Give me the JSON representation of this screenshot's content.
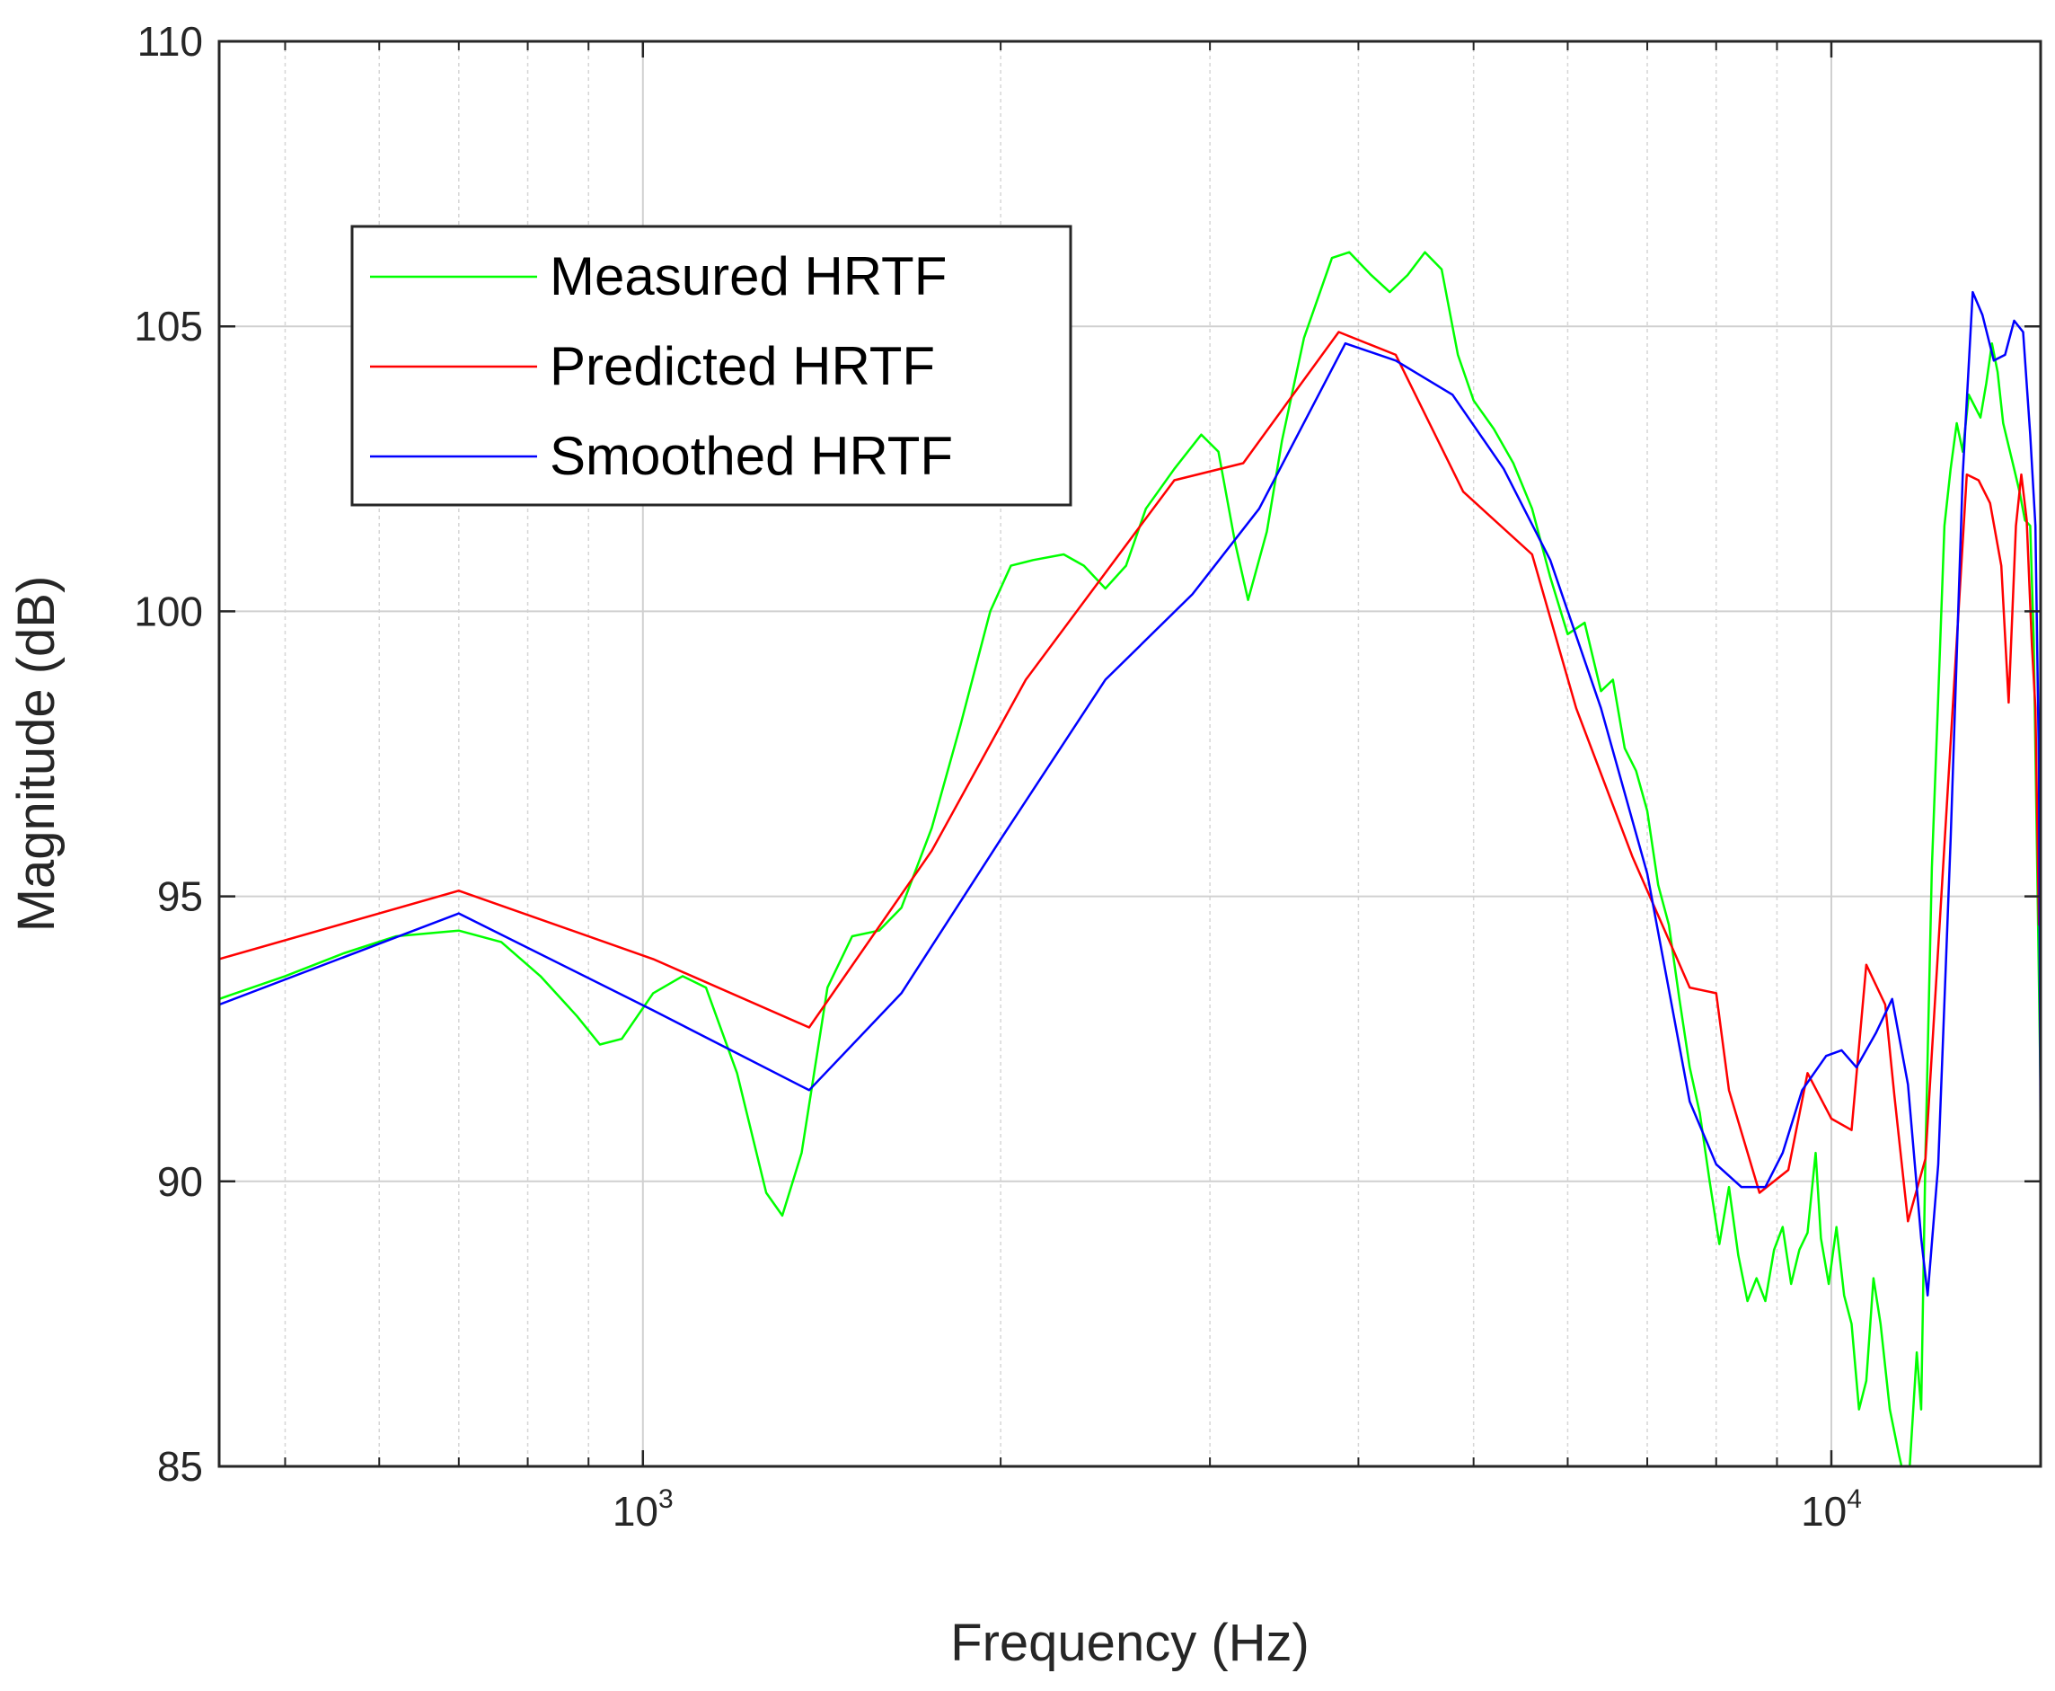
{
  "chart_data": {
    "type": "line",
    "xlabel": "Frequency (Hz)",
    "ylabel": "Magnitude (dB)",
    "x_scale": "log",
    "xlim": [
      440,
      15000
    ],
    "ylim": [
      85,
      110
    ],
    "y_ticks": [
      85,
      90,
      95,
      100,
      105,
      110
    ],
    "y_tick_labels": [
      "85",
      "90",
      "95",
      "100",
      "105",
      "110"
    ],
    "x_ticks": [
      1000,
      10000
    ],
    "x_tick_labels": [
      {
        "base": "10",
        "exp": "3"
      },
      {
        "base": "10",
        "exp": "4"
      }
    ],
    "grid": true,
    "legend_position": "upper-left",
    "series": [
      {
        "name": "Measured HRTF",
        "color": "#00ff00",
        "points": [
          [
            440,
            93.2
          ],
          [
            500,
            93.6
          ],
          [
            560,
            94.0
          ],
          [
            620,
            94.3
          ],
          [
            700,
            94.4
          ],
          [
            760,
            94.2
          ],
          [
            820,
            93.6
          ],
          [
            880,
            92.9
          ],
          [
            920,
            92.4
          ],
          [
            960,
            92.5
          ],
          [
            1020,
            93.3
          ],
          [
            1080,
            93.6
          ],
          [
            1130,
            93.4
          ],
          [
            1200,
            91.9
          ],
          [
            1270,
            89.8
          ],
          [
            1310,
            89.4
          ],
          [
            1360,
            90.5
          ],
          [
            1430,
            93.4
          ],
          [
            1500,
            94.3
          ],
          [
            1580,
            94.4
          ],
          [
            1650,
            94.8
          ],
          [
            1750,
            96.2
          ],
          [
            1850,
            98.0
          ],
          [
            1960,
            100.0
          ],
          [
            2040,
            100.8
          ],
          [
            2130,
            100.9
          ],
          [
            2260,
            101.0
          ],
          [
            2350,
            100.8
          ],
          [
            2450,
            100.4
          ],
          [
            2550,
            100.8
          ],
          [
            2650,
            101.8
          ],
          [
            2800,
            102.5
          ],
          [
            2950,
            103.1
          ],
          [
            3050,
            102.8
          ],
          [
            3150,
            101.2
          ],
          [
            3230,
            100.2
          ],
          [
            3350,
            101.4
          ],
          [
            3450,
            103.0
          ],
          [
            3600,
            104.8
          ],
          [
            3800,
            106.2
          ],
          [
            3930,
            106.3
          ],
          [
            4100,
            105.9
          ],
          [
            4250,
            105.6
          ],
          [
            4400,
            105.9
          ],
          [
            4550,
            106.3
          ],
          [
            4700,
            106.0
          ],
          [
            4850,
            104.5
          ],
          [
            5000,
            103.7
          ],
          [
            5200,
            103.2
          ],
          [
            5400,
            102.6
          ],
          [
            5600,
            101.8
          ],
          [
            5800,
            100.6
          ],
          [
            6000,
            99.6
          ],
          [
            6200,
            99.8
          ],
          [
            6400,
            98.6
          ],
          [
            6550,
            98.8
          ],
          [
            6700,
            97.6
          ],
          [
            6850,
            97.2
          ],
          [
            7000,
            96.5
          ],
          [
            7150,
            95.2
          ],
          [
            7300,
            94.5
          ],
          [
            7450,
            93.2
          ],
          [
            7600,
            92.0
          ],
          [
            7750,
            91.2
          ],
          [
            7900,
            90.0
          ],
          [
            8050,
            88.9
          ],
          [
            8200,
            89.9
          ],
          [
            8350,
            88.7
          ],
          [
            8500,
            87.9
          ],
          [
            8650,
            88.3
          ],
          [
            8800,
            87.9
          ],
          [
            8950,
            88.8
          ],
          [
            9100,
            89.2
          ],
          [
            9250,
            88.2
          ],
          [
            9400,
            88.8
          ],
          [
            9550,
            89.1
          ],
          [
            9700,
            90.5
          ],
          [
            9800,
            89.0
          ],
          [
            9950,
            88.2
          ],
          [
            10100,
            89.2
          ],
          [
            10250,
            88.0
          ],
          [
            10400,
            87.5
          ],
          [
            10550,
            86.0
          ],
          [
            10700,
            86.5
          ],
          [
            10850,
            88.3
          ],
          [
            11000,
            87.5
          ],
          [
            11200,
            86.0
          ],
          [
            11400,
            85.2
          ],
          [
            11600,
            84.5
          ],
          [
            11800,
            87.0
          ],
          [
            11900,
            86.0
          ],
          [
            12000,
            90.5
          ],
          [
            12150,
            95.5
          ],
          [
            12300,
            98.5
          ],
          [
            12450,
            101.5
          ],
          [
            12600,
            102.5
          ],
          [
            12750,
            103.3
          ],
          [
            12900,
            102.8
          ],
          [
            13050,
            103.8
          ],
          [
            13200,
            103.6
          ],
          [
            13350,
            103.4
          ],
          [
            13500,
            104.0
          ],
          [
            13650,
            104.7
          ],
          [
            13800,
            104.2
          ],
          [
            13950,
            103.3
          ],
          [
            14100,
            102.9
          ],
          [
            14250,
            102.5
          ],
          [
            14400,
            102.1
          ],
          [
            14550,
            101.6
          ],
          [
            14700,
            101.5
          ],
          [
            14800,
            99.5
          ],
          [
            14900,
            95.5
          ],
          [
            15000,
            91.5
          ]
        ]
      },
      {
        "name": "Predicted HRTF",
        "color": "#ff0000",
        "points": [
          [
            440,
            93.9
          ],
          [
            700,
            95.1
          ],
          [
            1020,
            93.9
          ],
          [
            1380,
            92.7
          ],
          [
            1750,
            95.8
          ],
          [
            2100,
            98.8
          ],
          [
            2800,
            102.3
          ],
          [
            3200,
            102.6
          ],
          [
            3850,
            104.9
          ],
          [
            4300,
            104.5
          ],
          [
            4900,
            102.1
          ],
          [
            5600,
            101.0
          ],
          [
            6100,
            98.3
          ],
          [
            6800,
            95.7
          ],
          [
            7600,
            93.4
          ],
          [
            8000,
            93.3
          ],
          [
            8200,
            91.6
          ],
          [
            8700,
            89.8
          ],
          [
            9200,
            90.2
          ],
          [
            9550,
            91.9
          ],
          [
            10000,
            91.1
          ],
          [
            10400,
            90.9
          ],
          [
            10700,
            93.8
          ],
          [
            11100,
            93.1
          ],
          [
            11300,
            91.5
          ],
          [
            11600,
            89.3
          ],
          [
            12000,
            90.4
          ],
          [
            12500,
            96.5
          ],
          [
            13000,
            102.4
          ],
          [
            13300,
            102.3
          ],
          [
            13600,
            101.9
          ],
          [
            13900,
            100.8
          ],
          [
            14100,
            98.4
          ],
          [
            14300,
            101.5
          ],
          [
            14450,
            102.4
          ],
          [
            14600,
            101.6
          ],
          [
            14750,
            99.4
          ],
          [
            14850,
            98.3
          ],
          [
            14950,
            94.5
          ],
          [
            15000,
            96.7
          ],
          [
            15000,
            95.0
          ]
        ]
      },
      {
        "name": "Smoothed HRTF",
        "color": "#0000ff",
        "points": [
          [
            440,
            93.1
          ],
          [
            700,
            94.7
          ],
          [
            1020,
            93.0
          ],
          [
            1380,
            91.6
          ],
          [
            1650,
            93.3
          ],
          [
            2000,
            96.0
          ],
          [
            2450,
            98.8
          ],
          [
            2900,
            100.3
          ],
          [
            3300,
            101.8
          ],
          [
            3900,
            104.7
          ],
          [
            4300,
            104.4
          ],
          [
            4800,
            103.8
          ],
          [
            5300,
            102.5
          ],
          [
            5800,
            100.9
          ],
          [
            6400,
            98.3
          ],
          [
            7000,
            95.4
          ],
          [
            7600,
            91.4
          ],
          [
            8000,
            90.3
          ],
          [
            8400,
            89.9
          ],
          [
            8800,
            89.9
          ],
          [
            9100,
            90.5
          ],
          [
            9450,
            91.6
          ],
          [
            9900,
            92.2
          ],
          [
            10200,
            92.3
          ],
          [
            10500,
            92.0
          ],
          [
            10900,
            92.6
          ],
          [
            11250,
            93.2
          ],
          [
            11600,
            91.7
          ],
          [
            11900,
            89.0
          ],
          [
            12050,
            88.0
          ],
          [
            12300,
            90.3
          ],
          [
            12600,
            96.0
          ],
          [
            12900,
            102.4
          ],
          [
            13150,
            105.6
          ],
          [
            13400,
            105.2
          ],
          [
            13700,
            104.4
          ],
          [
            14000,
            104.5
          ],
          [
            14250,
            105.1
          ],
          [
            14500,
            104.9
          ],
          [
            14700,
            103.1
          ],
          [
            14850,
            101.5
          ],
          [
            14950,
            97.3
          ],
          [
            15000,
            90.1
          ]
        ]
      }
    ]
  }
}
